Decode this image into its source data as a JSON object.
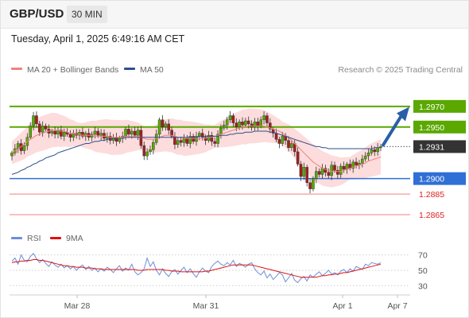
{
  "header": {
    "symbol": "GBP/USD",
    "timeframe": "30 MIN"
  },
  "timestamp": "Tuesday, April 1, 2025 6:49:16 AM CET",
  "credit": "Research © 2025 Trading Central",
  "colors": {
    "resistance": "#5aa800",
    "support": "#2f6fd6",
    "target": "#f08080",
    "bollinger_fill": "#fbd6d6",
    "ma20": "#f08080",
    "ma50": "#2e4f8a",
    "candle_up": "#5aa800",
    "candle_down": "#a02020",
    "price_box": "#333333",
    "arrow": "#2a5fa8",
    "rsi_line": "#6b8fd8",
    "rsi_ma": "#e01010"
  },
  "chart_data": [
    {
      "type": "candlestick",
      "legend": [
        "MA 20 + Bollinger Bands",
        "MA 50"
      ],
      "legend_position": "top-left",
      "ylim": [
        1.2855,
        1.2993
      ],
      "x_ticks": [
        "Mar 28",
        "Mar 31",
        "Apr 1",
        "Apr 7"
      ],
      "levels": [
        {
          "value": 1.297,
          "label": "1.2970",
          "kind": "resistance"
        },
        {
          "value": 1.295,
          "label": "1.2950",
          "kind": "resistance"
        },
        {
          "value": 1.2931,
          "label": "1.2931",
          "kind": "last"
        },
        {
          "value": 1.29,
          "label": "1.2900",
          "kind": "support"
        },
        {
          "value": 1.2885,
          "label": "1.2885",
          "kind": "target"
        },
        {
          "value": 1.2865,
          "label": "1.2865",
          "kind": "target"
        }
      ],
      "last_price": 1.2931,
      "close": [
        1.2925,
        1.2929,
        1.2934,
        1.2927,
        1.2932,
        1.294,
        1.2951,
        1.2961,
        1.2953,
        1.2945,
        1.2951,
        1.2948,
        1.2944,
        1.2946,
        1.2943,
        1.2947,
        1.2941,
        1.2945,
        1.2943,
        1.294,
        1.2944,
        1.2942,
        1.2945,
        1.2941,
        1.2944,
        1.294,
        1.2943,
        1.2946,
        1.2942,
        1.2944,
        1.2939,
        1.2941,
        1.2937,
        1.294,
        1.2936,
        1.2939,
        1.2941,
        1.2948,
        1.2943,
        1.2946,
        1.2942,
        1.2947,
        1.2932,
        1.2922,
        1.2926,
        1.2928,
        1.2935,
        1.2943,
        1.2957,
        1.295,
        1.2953,
        1.2947,
        1.2941,
        1.2933,
        1.2937,
        1.2935,
        1.2939,
        1.2934,
        1.2941,
        1.2936,
        1.2941,
        1.2944,
        1.294,
        1.2937,
        1.2942,
        1.2936,
        1.2934,
        1.2943,
        1.2949,
        1.2952,
        1.2957,
        1.2961,
        1.2954,
        1.295,
        1.2955,
        1.2952,
        1.2956,
        1.2953,
        1.295,
        1.2955,
        1.2951,
        1.2957,
        1.2961,
        1.2954,
        1.2948,
        1.2944,
        1.2938,
        1.2934,
        1.2941,
        1.2937,
        1.293,
        1.2934,
        1.2926,
        1.2914,
        1.2902,
        1.2911,
        1.2896,
        1.289,
        1.29,
        1.2907,
        1.2904,
        1.291,
        1.2906,
        1.2903,
        1.2913,
        1.2908,
        1.2904,
        1.2912,
        1.2909,
        1.2914,
        1.291,
        1.2916,
        1.2913,
        1.2915,
        1.2919,
        1.2922,
        1.2925,
        1.2928,
        1.2926,
        1.293,
        1.2931
      ],
      "ma20": [
        1.2925,
        1.2927,
        1.2929,
        1.2931,
        1.2933,
        1.2936,
        1.2938,
        1.294,
        1.2942,
        1.2943,
        1.2944,
        1.2945,
        1.2946,
        1.2947,
        1.2947,
        1.2947,
        1.2946,
        1.2946,
        1.2945,
        1.2944,
        1.2944,
        1.2943,
        1.2943,
        1.2942,
        1.2942,
        1.2942,
        1.2942,
        1.2941,
        1.2941,
        1.2941,
        1.2941,
        1.2941,
        1.294,
        1.294,
        1.294,
        1.294,
        1.294,
        1.2941,
        1.2941,
        1.2941,
        1.2941,
        1.2941,
        1.294,
        1.2939,
        1.2938,
        1.2938,
        1.2938,
        1.2939,
        1.294,
        1.2941,
        1.2942,
        1.2942,
        1.2942,
        1.2941,
        1.294,
        1.294,
        1.2939,
        1.2939,
        1.2939,
        1.2939,
        1.2939,
        1.2939,
        1.2939,
        1.2939,
        1.294,
        1.294,
        1.2941,
        1.2942,
        1.2943,
        1.2944,
        1.2945,
        1.2946,
        1.2947,
        1.2948,
        1.2949,
        1.295,
        1.295,
        1.2951,
        1.2951,
        1.2951,
        1.2951,
        1.2951,
        1.2951,
        1.295,
        1.2949,
        1.2948,
        1.2947,
        1.2946,
        1.2944,
        1.2942,
        1.294,
        1.2937,
        1.2934,
        1.2931,
        1.2928,
        1.2925,
        1.2922,
        1.2919,
        1.2916,
        1.2914,
        1.2912,
        1.291,
        1.2909,
        1.2908,
        1.2907,
        1.2907,
        1.2907,
        1.2907,
        1.2908,
        1.2909,
        1.291,
        1.2911,
        1.2912,
        1.2913,
        1.2914,
        1.2915,
        1.2917,
        1.2918,
        1.2919,
        1.292,
        1.2921
      ],
      "ma50": [
        1.2904,
        1.2905,
        1.2906,
        1.2908,
        1.2909,
        1.2911,
        1.2912,
        1.2914,
        1.2915,
        1.2917,
        1.2918,
        1.292,
        1.2921,
        1.2922,
        1.2923,
        1.2925,
        1.2926,
        1.2927,
        1.2928,
        1.2929,
        1.293,
        1.2931,
        1.2932,
        1.2933,
        1.2934,
        1.2934,
        1.2935,
        1.2936,
        1.2936,
        1.2937,
        1.2937,
        1.2938,
        1.2938,
        1.2939,
        1.2939,
        1.2939,
        1.2939,
        1.294,
        1.294,
        1.294,
        1.294,
        1.294,
        1.294,
        1.294,
        1.294,
        1.294,
        1.294,
        1.294,
        1.294,
        1.294,
        1.294,
        1.294,
        1.294,
        1.294,
        1.294,
        1.294,
        1.294,
        1.294,
        1.294,
        1.294,
        1.294,
        1.2941,
        1.2941,
        1.2941,
        1.2941,
        1.2941,
        1.2941,
        1.2941,
        1.2942,
        1.2942,
        1.2942,
        1.2943,
        1.2943,
        1.2944,
        1.2944,
        1.2944,
        1.2945,
        1.2945,
        1.2945,
        1.2946,
        1.2946,
        1.2946,
        1.2946,
        1.2946,
        1.2945,
        1.2945,
        1.2944,
        1.2943,
        1.2942,
        1.2941,
        1.294,
        1.2939,
        1.2938,
        1.2937,
        1.2936,
        1.2935,
        1.2934,
        1.2933,
        1.2932,
        1.2931,
        1.2931,
        1.293,
        1.293,
        1.2929,
        1.2929,
        1.2929,
        1.2929,
        1.2929,
        1.2929,
        1.2929,
        1.2929,
        1.2929,
        1.2929,
        1.2929,
        1.2929,
        1.2929,
        1.2929,
        1.2929,
        1.293,
        1.293,
        1.293
      ]
    },
    {
      "type": "line",
      "legend": [
        "RSI",
        "9MA"
      ],
      "legend_position": "top-left",
      "ylim": [
        22,
        78
      ],
      "y_ticks": [
        70,
        50,
        30
      ],
      "rsi": [
        62,
        66,
        58,
        70,
        63,
        61,
        68,
        72,
        65,
        60,
        64,
        59,
        55,
        61,
        57,
        54,
        58,
        53,
        56,
        52,
        55,
        50,
        54,
        57,
        51,
        55,
        50,
        53,
        48,
        52,
        49,
        54,
        51,
        47,
        52,
        56,
        49,
        53,
        50,
        58,
        48,
        44,
        47,
        52,
        66,
        55,
        61,
        50,
        44,
        52,
        46,
        42,
        48,
        51,
        45,
        50,
        54,
        47,
        52,
        46,
        41,
        48,
        53,
        49,
        47,
        55,
        59,
        62,
        58,
        56,
        60,
        57,
        63,
        55,
        59,
        57,
        54,
        58,
        60,
        52,
        47,
        44,
        49,
        40,
        45,
        38,
        42,
        47,
        44,
        35,
        40,
        46,
        37,
        34,
        39,
        42,
        36,
        44,
        41,
        45,
        48,
        43,
        46,
        50,
        45,
        47,
        44,
        49,
        51,
        47,
        52,
        49,
        55,
        53,
        51,
        58,
        56,
        60,
        59,
        58,
        60
      ],
      "ma9": [
        60,
        61,
        61,
        62,
        62,
        63,
        63,
        64,
        64,
        63,
        63,
        62,
        61,
        60,
        59,
        58,
        57,
        56,
        56,
        55,
        55,
        54,
        54,
        54,
        53,
        53,
        53,
        52,
        52,
        52,
        51,
        51,
        51,
        51,
        51,
        51,
        51,
        51,
        51,
        51,
        51,
        50,
        50,
        50,
        51,
        51,
        51,
        51,
        51,
        51,
        50,
        50,
        49,
        49,
        49,
        48,
        48,
        48,
        48,
        48,
        48,
        48,
        48,
        49,
        49,
        50,
        51,
        52,
        53,
        54,
        55,
        56,
        57,
        57,
        57,
        57,
        57,
        57,
        57,
        56,
        55,
        54,
        53,
        52,
        51,
        50,
        49,
        48,
        47,
        46,
        45,
        44,
        43,
        42,
        41,
        41,
        41,
        41,
        41,
        41,
        42,
        43,
        43,
        44,
        44,
        45,
        45,
        46,
        47,
        47,
        48,
        49,
        50,
        51,
        52,
        53,
        54,
        55,
        56,
        57,
        58
      ]
    }
  ]
}
